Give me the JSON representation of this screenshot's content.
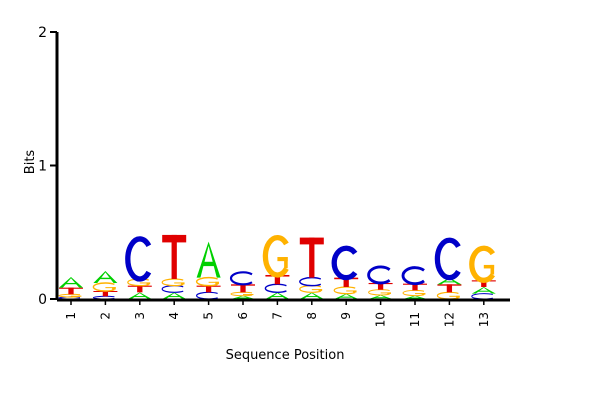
{
  "chart_data": {
    "type": "sequence-logo",
    "xlabel": "Sequence Position",
    "ylabel": "Bits",
    "ylim": [
      0,
      2
    ],
    "yticks": [
      "0",
      "1",
      "2"
    ],
    "positions": [
      "1",
      "2",
      "3",
      "4",
      "5",
      "6",
      "7",
      "8",
      "9",
      "10",
      "11",
      "12",
      "13"
    ],
    "color_map": {
      "A": "#00d000",
      "C": "#0000c8",
      "G": "#ffb200",
      "T": "#e00000"
    },
    "stacks": [
      [
        {
          "letter": "C",
          "bits": 0.015
        },
        {
          "letter": "G",
          "bits": 0.02
        },
        {
          "letter": "T",
          "bits": 0.05
        },
        {
          "letter": "A",
          "bits": 0.08
        }
      ],
      [
        {
          "letter": "C",
          "bits": 0.02
        },
        {
          "letter": "T",
          "bits": 0.04
        },
        {
          "letter": "G",
          "bits": 0.06
        },
        {
          "letter": "A",
          "bits": 0.09
        }
      ],
      [
        {
          "letter": "A",
          "bits": 0.05
        },
        {
          "letter": "T",
          "bits": 0.05
        },
        {
          "letter": "G",
          "bits": 0.05
        },
        {
          "letter": "C",
          "bits": 0.3
        }
      ],
      [
        {
          "letter": "A",
          "bits": 0.05
        },
        {
          "letter": "C",
          "bits": 0.05
        },
        {
          "letter": "G",
          "bits": 0.05
        },
        {
          "letter": "T",
          "bits": 0.33
        }
      ],
      [
        {
          "letter": "C",
          "bits": 0.05
        },
        {
          "letter": "T",
          "bits": 0.05
        },
        {
          "letter": "G",
          "bits": 0.06
        },
        {
          "letter": "A",
          "bits": 0.27
        }
      ],
      [
        {
          "letter": "A",
          "bits": 0.025
        },
        {
          "letter": "G",
          "bits": 0.025
        },
        {
          "letter": "T",
          "bits": 0.06
        },
        {
          "letter": "C",
          "bits": 0.09
        }
      ],
      [
        {
          "letter": "A",
          "bits": 0.05
        },
        {
          "letter": "C",
          "bits": 0.06
        },
        {
          "letter": "T",
          "bits": 0.07
        },
        {
          "letter": "G",
          "bits": 0.28
        }
      ],
      [
        {
          "letter": "A",
          "bits": 0.05
        },
        {
          "letter": "G",
          "bits": 0.05
        },
        {
          "letter": "C",
          "bits": 0.06
        },
        {
          "letter": "T",
          "bits": 0.3
        }
      ],
      [
        {
          "letter": "A",
          "bits": 0.04
        },
        {
          "letter": "G",
          "bits": 0.05
        },
        {
          "letter": "T",
          "bits": 0.07
        },
        {
          "letter": "C",
          "bits": 0.22
        }
      ],
      [
        {
          "letter": "A",
          "bits": 0.03
        },
        {
          "letter": "G",
          "bits": 0.04
        },
        {
          "letter": "T",
          "bits": 0.05
        },
        {
          "letter": "C",
          "bits": 0.12
        }
      ],
      [
        {
          "letter": "A",
          "bits": 0.025
        },
        {
          "letter": "G",
          "bits": 0.04
        },
        {
          "letter": "T",
          "bits": 0.05
        },
        {
          "letter": "C",
          "bits": 0.12
        }
      ],
      [
        {
          "letter": "G",
          "bits": 0.05
        },
        {
          "letter": "T",
          "bits": 0.06
        },
        {
          "letter": "A",
          "bits": 0.05
        },
        {
          "letter": "C",
          "bits": 0.28
        }
      ],
      [
        {
          "letter": "C",
          "bits": 0.04
        },
        {
          "letter": "A",
          "bits": 0.05
        },
        {
          "letter": "T",
          "bits": 0.05
        },
        {
          "letter": "G",
          "bits": 0.24
        }
      ]
    ]
  }
}
